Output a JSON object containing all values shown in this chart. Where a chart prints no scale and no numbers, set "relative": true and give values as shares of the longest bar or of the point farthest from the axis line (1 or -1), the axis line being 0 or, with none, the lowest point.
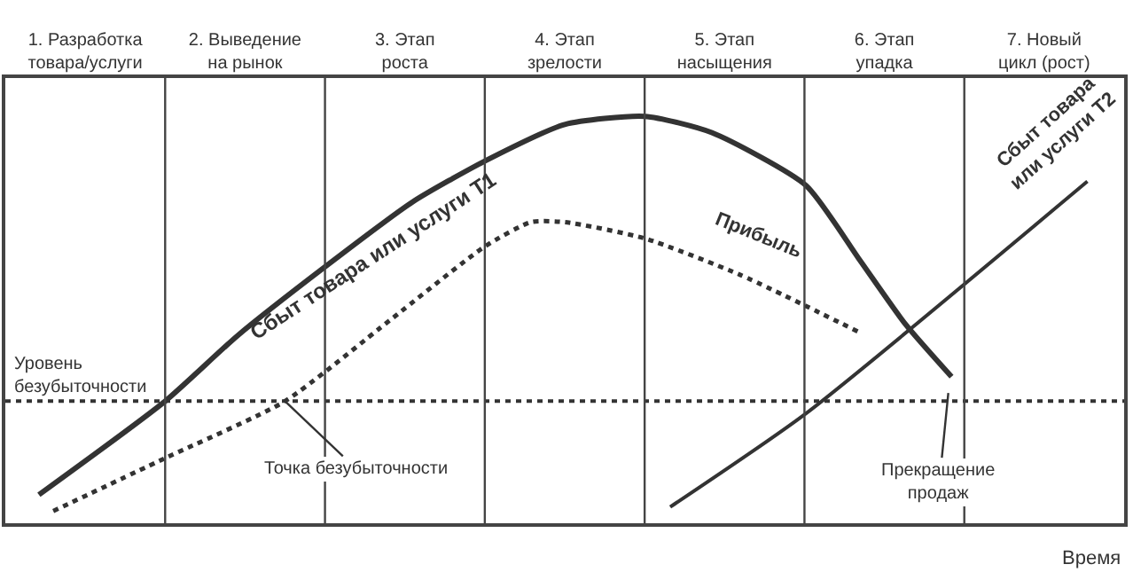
{
  "chart_data": {
    "type": "line",
    "relative": true,
    "xlabel": "Время",
    "xlim": [
      0,
      7
    ],
    "xticks": [
      {
        "value": 0.5,
        "label": "1. Разработка\nтовара/услуги"
      },
      {
        "value": 1.5,
        "label": "2. Выведение\nна рынок"
      },
      {
        "value": 2.5,
        "label": "3. Этап\nроста"
      },
      {
        "value": 3.5,
        "label": "4. Этап\nзрелости"
      },
      {
        "value": 4.5,
        "label": "5. Этап\nнасыщения"
      },
      {
        "value": 5.5,
        "label": "6. Этап\nупадка"
      },
      {
        "value": 6.5,
        "label": "7. Новый\nцикл (рост)"
      }
    ],
    "tick_labels": "x",
    "legend": false,
    "marker": "none",
    "series": [
      {
        "name": "Сбыт товара или услуги Т1",
        "color": "#333333",
        "line_style": "solid",
        "x": [
          0.21,
          1.0,
          1.45,
          2.0,
          2.55,
          3.0,
          3.5,
          4.0,
          4.42,
          5.01,
          5.34,
          5.63,
          5.92
        ],
        "values": [
          0.07,
          0.3,
          0.46,
          0.63,
          0.79,
          0.89,
          0.98,
          1.0,
          0.96,
          0.83,
          0.65,
          0.49,
          0.36
        ]
      },
      {
        "name": "Прибыль",
        "color": "#333333",
        "line_style": "dotted",
        "x": [
          0.3,
          1.0,
          1.75,
          2.41,
          3.0,
          3.29,
          3.5,
          4.0,
          4.6,
          5.34
        ],
        "values": [
          0.03,
          0.16,
          0.3,
          0.5,
          0.68,
          0.74,
          0.74,
          0.7,
          0.61,
          0.47
        ]
      },
      {
        "name": "Сбыт товара\nили услуги Т2",
        "color": "#333333",
        "line_style": "solid",
        "x": [
          4.16,
          5.01,
          6.77
        ],
        "values": [
          0.04,
          0.27,
          0.84
        ]
      }
    ],
    "ref_lines": [
      {
        "axis": "y",
        "value": 0.3,
        "label": "Уровень\nбезубыточности",
        "color": "#333333",
        "line_style": "dotted"
      },
      {
        "axis": "x",
        "value": 1,
        "color": "#444444",
        "line_style": "solid"
      },
      {
        "axis": "x",
        "value": 2,
        "color": "#444444",
        "line_style": "solid"
      },
      {
        "axis": "x",
        "value": 3,
        "color": "#444444",
        "line_style": "solid"
      },
      {
        "axis": "x",
        "value": 4,
        "color": "#444444",
        "line_style": "solid"
      },
      {
        "axis": "x",
        "value": 5,
        "color": "#444444",
        "line_style": "solid"
      },
      {
        "axis": "x",
        "value": 6,
        "color": "#444444",
        "line_style": "solid"
      }
    ],
    "annotations": [
      {
        "text": "Точка безубыточности",
        "x": 1.75,
        "y": 0.3
      },
      {
        "text": "Прекращение\nпродаж",
        "x": 5.9,
        "y": 0.32
      }
    ]
  }
}
